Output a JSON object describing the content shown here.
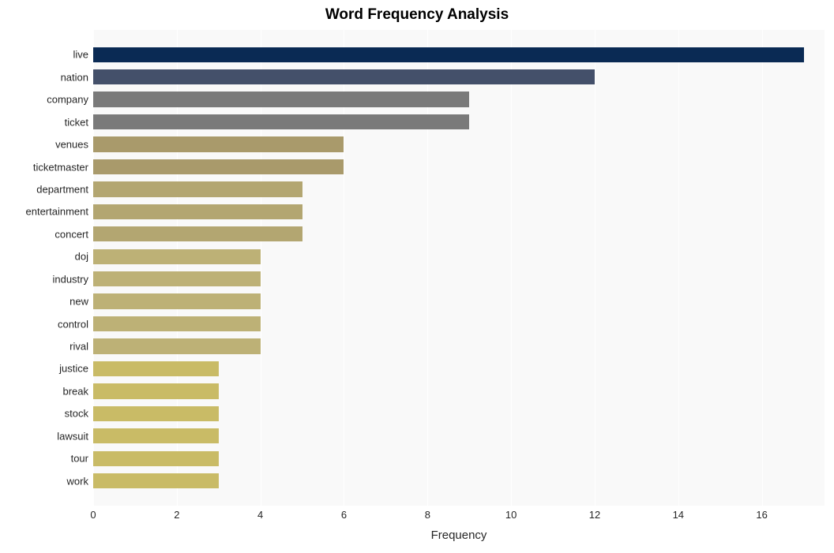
{
  "chart": {
    "type": "bar-horizontal",
    "title": "Word Frequency Analysis",
    "title_fontsize": 19,
    "title_fontweight": "bold",
    "title_color": "#000000",
    "xlabel": "Frequency",
    "xlabel_fontsize": 15,
    "xlabel_color": "#262626",
    "ylabel_fontsize": 13,
    "ylabel_color": "#262626",
    "xtick_fontsize": 13,
    "xlim": [
      0,
      17.5
    ],
    "xtick_step": 2,
    "xticks": [
      0,
      2,
      4,
      6,
      8,
      10,
      12,
      14,
      16
    ],
    "background_color": "#ffffff",
    "plot_bg_color": "#f9f9f9",
    "grid_color": "#ffffff",
    "bar_height_ratio": 0.68,
    "top_padding_rows": 0.6,
    "bottom_padding_rows": 0.6,
    "categories": [
      "live",
      "nation",
      "company",
      "ticket",
      "venues",
      "ticketmaster",
      "department",
      "entertainment",
      "concert",
      "doj",
      "industry",
      "new",
      "control",
      "rival",
      "justice",
      "break",
      "stock",
      "lawsuit",
      "tour",
      "work"
    ],
    "values": [
      17,
      12,
      9,
      9,
      6,
      6,
      5,
      5,
      5,
      4,
      4,
      4,
      4,
      4,
      3,
      3,
      3,
      3,
      3,
      3
    ],
    "bar_colors": [
      "#0a2a54",
      "#44506a",
      "#7a7a7a",
      "#7a7a7a",
      "#a99a6b",
      "#a99a6b",
      "#b3a671",
      "#b3a671",
      "#b3a671",
      "#bdb176",
      "#bdb176",
      "#bdb176",
      "#bdb176",
      "#bdb176",
      "#c9bb66",
      "#c9bb66",
      "#c9bb66",
      "#c9bb66",
      "#c9bb66",
      "#c9bb66"
    ]
  }
}
